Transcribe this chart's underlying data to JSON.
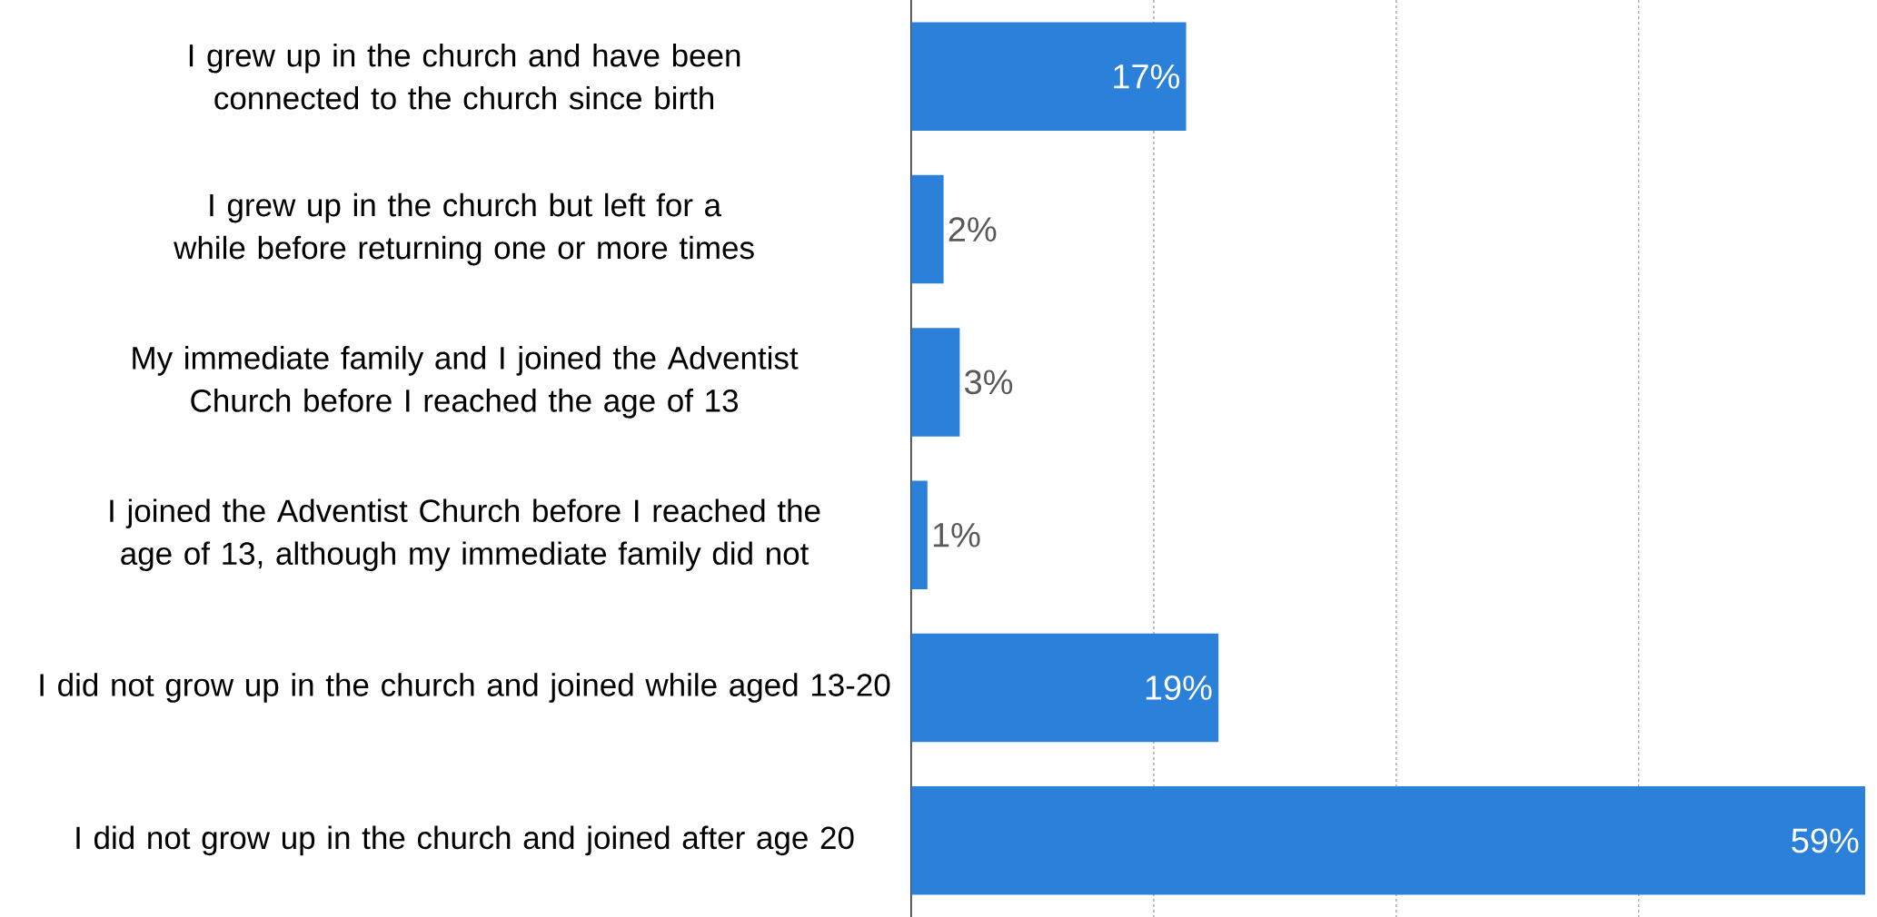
{
  "chart_data": {
    "type": "bar",
    "orientation": "horizontal",
    "categories": [
      "I grew up in the church and have been connected to the church since birth",
      "I grew up in the church but left for a while before returning one or more times",
      "My immediate family and I joined the Adventist Church before I reached the age of 13",
      "I joined the Adventist Church before I reached the age of 13, although my immediate family did not",
      "I did not grow up in the church and joined while aged 13-20",
      "I did not grow up in the church and joined after age 20"
    ],
    "values": [
      17,
      2,
      3,
      1,
      19,
      59
    ],
    "value_labels": [
      "17%",
      "2%",
      "3%",
      "1%",
      "19%",
      "59%"
    ],
    "color": "#2b80d9",
    "xlim": [
      0,
      59
    ],
    "xticks": [
      {
        "value": 15,
        "label": null
      },
      {
        "value": 30,
        "label": null
      },
      {
        "value": 45,
        "label": null
      }
    ],
    "grid": "x"
  }
}
